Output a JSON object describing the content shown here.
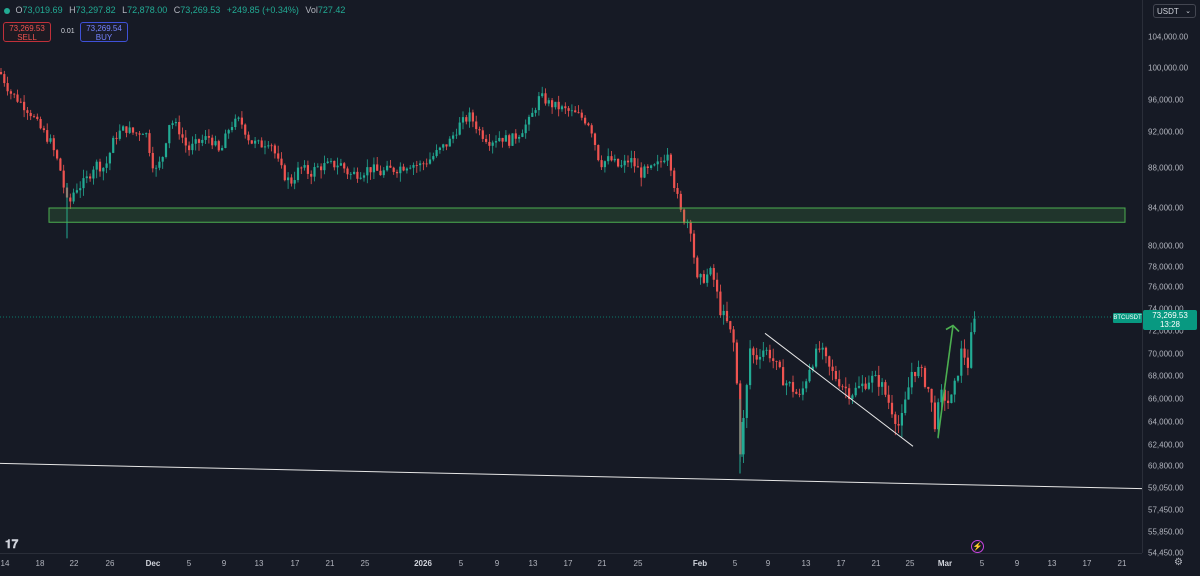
{
  "symbol": "BTCUSDT",
  "ohlc": {
    "o_key": "O",
    "o_val": "73,019.69",
    "h_key": "H",
    "h_val": "73,297.82",
    "l_key": "L",
    "l_val": "72,878.00",
    "c_key": "C",
    "c_val": "73,269.53",
    "change": "+249.85 (+0.34%)",
    "vol_key": "Vol",
    "vol_val": "727.42"
  },
  "trade": {
    "sell_price": "73,269.53",
    "sell_label": "SELL",
    "lot": "0.01",
    "buy_price": "73,269.54",
    "buy_label": "BUY"
  },
  "currency": "USDT",
  "last_price": {
    "price": "73,269.53",
    "countdown": "13:28",
    "value": 73269.53
  },
  "colors": {
    "background": "#161a25",
    "up": "#22ab94",
    "down": "#ef5350",
    "zone": "#4caf50",
    "accent": "#089981"
  },
  "price_ticks": [
    "104,000.00",
    "100,000.00",
    "96,000.00",
    "92,000.00",
    "88,000.00",
    "84,000.00",
    "80,000.00",
    "78,000.00",
    "76,000.00",
    "74,000.00",
    "72,000.00",
    "70,000.00",
    "68,000.00",
    "66,000.00",
    "64,000.00",
    "62,400.00",
    "60,800.00",
    "59,050.00",
    "57,450.00",
    "55,850.00",
    "54,450.00"
  ],
  "time_ticks": [
    "14",
    "18",
    "22",
    "26",
    "Dec",
    "5",
    "9",
    "13",
    "17",
    "21",
    "25",
    "2026",
    "5",
    "9",
    "13",
    "17",
    "21",
    "25",
    "Feb",
    "5",
    "9",
    "13",
    "17",
    "21",
    "25",
    "Mar",
    "5",
    "9",
    "13",
    "17",
    "21"
  ],
  "chart_data": {
    "type": "candlestick",
    "symbol": "BTCUSDT",
    "quote_currency": "USDT",
    "x_ticks": [
      "14",
      "18",
      "22",
      "26",
      "Dec",
      "5",
      "9",
      "13",
      "17",
      "21",
      "25",
      "2026",
      "5",
      "9",
      "13",
      "17",
      "21",
      "25",
      "Feb",
      "5",
      "9",
      "13",
      "17",
      "21",
      "25",
      "Mar",
      "5",
      "9",
      "13",
      "17",
      "21"
    ],
    "y_ticks": [
      104000,
      100000,
      96000,
      92000,
      88000,
      84000,
      80000,
      78000,
      76000,
      74000,
      72000,
      70000,
      68000,
      66000,
      64000,
      62400,
      60800,
      59050,
      57450,
      55850,
      54450
    ],
    "price_path": [
      [
        0,
        99500
      ],
      [
        10,
        97000
      ],
      [
        20,
        95800
      ],
      [
        30,
        94500
      ],
      [
        40,
        92500
      ],
      [
        50,
        91000
      ],
      [
        60,
        88000
      ],
      [
        68,
        84000
      ],
      [
        75,
        86000
      ],
      [
        85,
        86500
      ],
      [
        95,
        88500
      ],
      [
        105,
        88000
      ],
      [
        115,
        91500
      ],
      [
        125,
        92500
      ],
      [
        135,
        91800
      ],
      [
        145,
        92300
      ],
      [
        155,
        87500
      ],
      [
        162,
        89000
      ],
      [
        170,
        93500
      ],
      [
        178,
        92500
      ],
      [
        188,
        90000
      ],
      [
        198,
        90800
      ],
      [
        210,
        91500
      ],
      [
        220,
        89500
      ],
      [
        230,
        92800
      ],
      [
        240,
        93500
      ],
      [
        250,
        91000
      ],
      [
        260,
        90500
      ],
      [
        270,
        91200
      ],
      [
        280,
        88000
      ],
      [
        290,
        86500
      ],
      [
        300,
        88000
      ],
      [
        310,
        87500
      ],
      [
        320,
        88200
      ],
      [
        330,
        88300
      ],
      [
        340,
        88500
      ],
      [
        350,
        87300
      ],
      [
        360,
        87600
      ],
      [
        370,
        88000
      ],
      [
        380,
        87500
      ],
      [
        390,
        87800
      ],
      [
        400,
        88100
      ],
      [
        410,
        88500
      ],
      [
        420,
        88300
      ],
      [
        430,
        89000
      ],
      [
        440,
        90000
      ],
      [
        450,
        91000
      ],
      [
        460,
        93000
      ],
      [
        470,
        94000
      ],
      [
        480,
        92000
      ],
      [
        490,
        91000
      ],
      [
        500,
        91500
      ],
      [
        510,
        91000
      ],
      [
        520,
        92000
      ],
      [
        530,
        93500
      ],
      [
        540,
        96500
      ],
      [
        550,
        95500
      ],
      [
        560,
        95000
      ],
      [
        570,
        94500
      ],
      [
        580,
        94000
      ],
      [
        590,
        93000
      ],
      [
        600,
        88500
      ],
      [
        610,
        89000
      ],
      [
        620,
        88000
      ],
      [
        630,
        89000
      ],
      [
        640,
        87500
      ],
      [
        650,
        87700
      ],
      [
        660,
        88500
      ],
      [
        668,
        90000
      ],
      [
        675,
        86000
      ],
      [
        682,
        83000
      ],
      [
        690,
        82500
      ],
      [
        697,
        76500
      ],
      [
        705,
        77000
      ],
      [
        712,
        77500
      ],
      [
        720,
        74000
      ],
      [
        728,
        72500
      ],
      [
        735,
        70500
      ],
      [
        740,
        62000
      ],
      [
        745,
        65000
      ],
      [
        750,
        70500
      ],
      [
        755,
        69500
      ],
      [
        762,
        70500
      ],
      [
        770,
        70000
      ],
      [
        778,
        68500
      ],
      [
        785,
        67500
      ],
      [
        792,
        67000
      ],
      [
        800,
        66000
      ],
      [
        810,
        69000
      ],
      [
        820,
        70500
      ],
      [
        830,
        68500
      ],
      [
        840,
        67500
      ],
      [
        850,
        66500
      ],
      [
        860,
        67000
      ],
      [
        870,
        67800
      ],
      [
        880,
        67500
      ],
      [
        890,
        65500
      ],
      [
        900,
        63500
      ],
      [
        905,
        65500
      ],
      [
        912,
        68500
      ],
      [
        920,
        68500
      ],
      [
        928,
        67000
      ],
      [
        935,
        64000
      ],
      [
        942,
        66500
      ],
      [
        950,
        65500
      ],
      [
        956,
        67500
      ],
      [
        962,
        70500
      ],
      [
        968,
        69000
      ],
      [
        972,
        72000
      ],
      [
        975,
        73000
      ],
      [
        977,
        73270
      ]
    ],
    "zones": [
      {
        "type": "demand",
        "from": 82500,
        "to": 84000
      }
    ],
    "trendlines": [
      {
        "role": "descending-trendline",
        "points": [
          [
            765,
            71800
          ],
          [
            913,
            62300
          ]
        ]
      },
      {
        "role": "support-line",
        "points": [
          [
            0,
            61000
          ],
          [
            1142,
            59000
          ]
        ]
      }
    ],
    "arrows": [
      {
        "role": "projection-arrow",
        "points": [
          [
            938,
            62900
          ],
          [
            953,
            72500
          ]
        ]
      }
    ],
    "grid": false,
    "last_price": 73269.53
  }
}
